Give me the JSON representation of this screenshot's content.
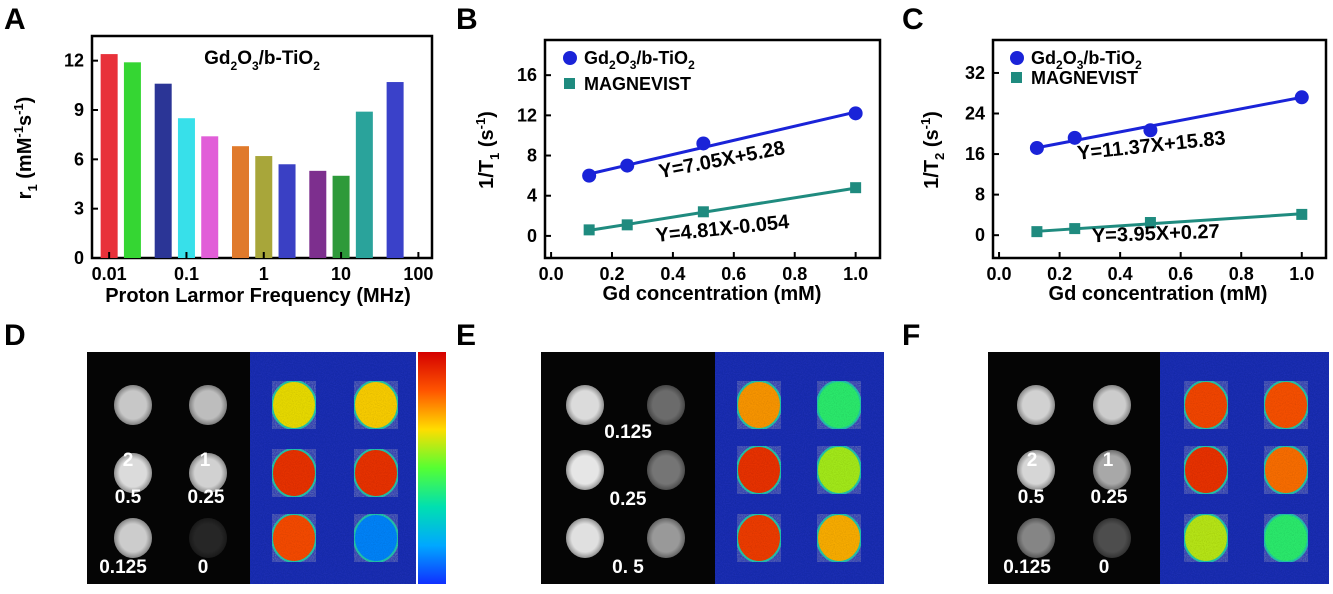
{
  "panel_letters": [
    "A",
    "B",
    "C",
    "D",
    "E",
    "F"
  ],
  "colors": {
    "blue": "#1a23d8",
    "teal": "#1f8b7f",
    "bar_colors": [
      "#e8313a",
      "#35d633",
      "#2b3596",
      "#37e0ea",
      "#e15ed8",
      "#e07a2c",
      "#a8a63a",
      "#3a40c4",
      "#7d2f8e",
      "#2e9a3a",
      "#2aa39b",
      "#3a41c9"
    ],
    "colormap": [
      "#d40000",
      "#ff5500",
      "#ffdd00",
      "#55ff33",
      "#00e0b0",
      "#00a8ff",
      "#1030ff"
    ]
  },
  "chart_data": [
    {
      "type": "bar",
      "panel": "A",
      "title_main": "Gd",
      "title_sub1": "2",
      "title_mid": "O",
      "title_sub2": "3",
      "title_end": "/b-TiO",
      "title_sub3": "2",
      "ylabel_main": "r",
      "ylabel_sub": "1",
      "ylabel_unit_a": " (mM",
      "ylabel_sup_a": "-1",
      "ylabel_unit_b": "s",
      "ylabel_sup_b": "-1",
      "ylabel_close": ")",
      "xlabel": "Proton Larmor Frequency (MHz)",
      "yticks": [
        "0",
        "3",
        "6",
        "9",
        "12"
      ],
      "ytick_values": [
        0,
        3,
        6,
        9,
        12
      ],
      "xticks": [
        "0.01",
        "0.1",
        "1",
        "10",
        "100"
      ],
      "xtick_values": [
        0.01,
        0.1,
        1,
        10,
        100
      ],
      "xscale": "log",
      "xlim": [
        0.006,
        150
      ],
      "ylim": [
        0,
        13.5
      ],
      "x": [
        0.01,
        0.02,
        0.05,
        0.1,
        0.2,
        0.5,
        1,
        2,
        5,
        10,
        20,
        50
      ],
      "values": [
        12.4,
        11.9,
        10.6,
        8.5,
        7.4,
        6.8,
        6.2,
        5.7,
        5.3,
        5.0,
        8.9,
        10.7
      ]
    },
    {
      "type": "scatter",
      "panel": "B",
      "ylabel_main": "1/T",
      "ylabel_sub": "1",
      "ylabel_unit": " (s",
      "ylabel_sup": "-1",
      "ylabel_close": ")",
      "xlabel": "Gd concentration (mM)",
      "xticks": [
        "0.0",
        "0.2",
        "0.4",
        "0.6",
        "0.8",
        "1.0"
      ],
      "xtick_values": [
        0,
        0.2,
        0.4,
        0.6,
        0.8,
        1.0
      ],
      "yticks": [
        "0",
        "4",
        "8",
        "12",
        "16"
      ],
      "ytick_values": [
        0,
        4,
        8,
        12,
        16
      ],
      "xlim": [
        -0.02,
        1.08
      ],
      "ylim": [
        -2.2,
        19.5
      ],
      "series": [
        {
          "name_a": "Gd",
          "name_sub1": "2",
          "name_b": "O",
          "name_sub2": "3",
          "name_c": "/b-TiO",
          "name_sub3": "2",
          "marker": "circle",
          "x": [
            0.125,
            0.25,
            0.5,
            1.0
          ],
          "y": [
            6.0,
            7.0,
            9.2,
            12.2
          ],
          "slope": 7.05,
          "intercept": 5.28,
          "equation": "Y=7.05X+5.28"
        },
        {
          "name": "MAGNEVIST",
          "marker": "square",
          "x": [
            0.125,
            0.25,
            0.5,
            1.0
          ],
          "y": [
            0.6,
            1.1,
            2.4,
            4.8
          ],
          "slope": 4.81,
          "intercept": -0.054,
          "equation": "Y=4.81X-0.054"
        }
      ]
    },
    {
      "type": "scatter",
      "panel": "C",
      "ylabel_main": "1/T",
      "ylabel_sub": "2",
      "ylabel_unit": " (s",
      "ylabel_sup": "-1",
      "ylabel_close": ")",
      "xlabel": "Gd concentration (mM)",
      "xticks": [
        "0.0",
        "0.2",
        "0.4",
        "0.6",
        "0.8",
        "1.0"
      ],
      "xtick_values": [
        0,
        0.2,
        0.4,
        0.6,
        0.8,
        1.0
      ],
      "yticks": [
        "0",
        "8",
        "16",
        "24",
        "32"
      ],
      "ytick_values": [
        0,
        8,
        16,
        24,
        32
      ],
      "xlim": [
        -0.02,
        1.08
      ],
      "ylim": [
        -4.5,
        38.5
      ],
      "series": [
        {
          "name_a": "Gd",
          "name_sub1": "2",
          "name_b": "O",
          "name_sub2": "3",
          "name_c": "/b-TiO",
          "name_sub3": "2",
          "marker": "circle",
          "x": [
            0.125,
            0.25,
            0.5,
            1.0
          ],
          "y": [
            17.2,
            19.2,
            20.7,
            27.2
          ],
          "slope": 11.37,
          "intercept": 15.83,
          "equation": "Y=11.37X+15.83"
        },
        {
          "name": "MAGNEVIST",
          "marker": "square",
          "x": [
            0.125,
            0.25,
            0.5,
            1.0
          ],
          "y": [
            0.7,
            1.3,
            2.5,
            4.1
          ],
          "slope": 3.95,
          "intercept": 0.27,
          "equation": "Y=3.95X+0.27"
        }
      ]
    }
  ],
  "mri": {
    "D": {
      "labels": [
        "2",
        "1",
        "0.5",
        "0.25",
        "0.125",
        "0"
      ],
      "gray": [
        0.78,
        0.74,
        0.86,
        0.82,
        0.8,
        0.15
      ],
      "heat": [
        0.35,
        0.32,
        0.1,
        0.1,
        0.15,
        0.88
      ]
    },
    "E": {
      "labels": [
        "0.125",
        "0.25",
        "0. 5"
      ],
      "gray": [
        0.86,
        0.42,
        0.9,
        0.46,
        0.88,
        0.6
      ],
      "heat": [
        0.25,
        0.58,
        0.1,
        0.42,
        0.12,
        0.28
      ]
    },
    "F": {
      "labels": [
        "2",
        "1",
        "0.5",
        "0.25",
        "0.125",
        "0"
      ],
      "gray": [
        0.82,
        0.8,
        0.84,
        0.66,
        0.52,
        0.3
      ],
      "heat": [
        0.14,
        0.16,
        0.1,
        0.2,
        0.4,
        0.58
      ]
    }
  }
}
